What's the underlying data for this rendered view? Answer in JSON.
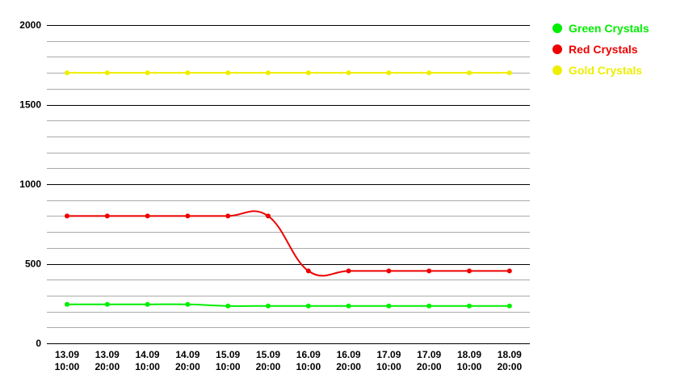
{
  "chart_data": {
    "type": "line",
    "categories": [
      [
        "13.09",
        "10:00"
      ],
      [
        "13.09",
        "20:00"
      ],
      [
        "14.09",
        "10:00"
      ],
      [
        "14.09",
        "20:00"
      ],
      [
        "15.09",
        "10:00"
      ],
      [
        "15.09",
        "20:00"
      ],
      [
        "16.09",
        "10:00"
      ],
      [
        "16.09",
        "20:00"
      ],
      [
        "17.09",
        "10:00"
      ],
      [
        "17.09",
        "20:00"
      ],
      [
        "18.09",
        "10:00"
      ],
      [
        "18.09",
        "20:00"
      ]
    ],
    "series": [
      {
        "name": "Green Crystals",
        "color": "#00ee00",
        "values": [
          245,
          245,
          245,
          245,
          235,
          235,
          235,
          235,
          235,
          235,
          235,
          235
        ]
      },
      {
        "name": "Red Crystals",
        "color": "#ee0000",
        "values": [
          800,
          800,
          800,
          800,
          800,
          800,
          455,
          455,
          455,
          455,
          455,
          455
        ]
      },
      {
        "name": "Gold Crystals",
        "color": "#eeee00",
        "values": [
          1700,
          1700,
          1700,
          1700,
          1700,
          1700,
          1700,
          1700,
          1700,
          1700,
          1700,
          1700
        ]
      }
    ],
    "y_ticks": [
      0,
      500,
      1000,
      1500,
      2000
    ],
    "ylim": [
      0,
      2000
    ],
    "minor_grid_step": 100,
    "grid": true,
    "legend_position": "top-right"
  }
}
